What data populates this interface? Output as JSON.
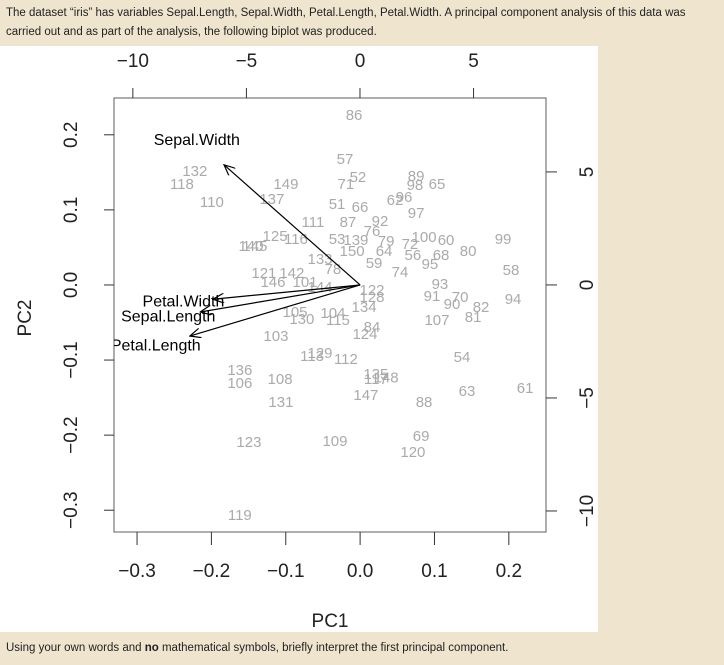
{
  "question": {
    "intro": "The dataset “iris” has variables Sepal.Length, Sepal.Width, Petal.Length, Petal.Width. A principal component analysis of this data was carried out and as part of the analysis, the following biplot was produced.",
    "prompt_start": "Using your own words and ",
    "prompt_emphasis": "no",
    "prompt_end": " mathematical symbols, briefly interpret the first principal component."
  },
  "chart_data": {
    "type": "biplot",
    "x_label": "PC1",
    "y_label": "PC2",
    "xlim": [
      -0.331,
      0.25
    ],
    "ylim": [
      -0.329,
      0.249
    ],
    "xticks": [
      {
        "value": -0.3,
        "label": "−0.3"
      },
      {
        "value": -0.2,
        "label": "−0.2"
      },
      {
        "value": -0.1,
        "label": "−0.1"
      },
      {
        "value": 0,
        "label": "0.0"
      },
      0.1,
      0.2
    ],
    "yticks": [
      {
        "value": -0.3,
        "label": "−0.3"
      },
      {
        "value": -0.2,
        "label": "−0.2"
      },
      {
        "value": -0.1,
        "label": "−0.1"
      },
      {
        "value": 0,
        "label": "0.0"
      },
      0.1,
      0.2
    ],
    "x2lim": [
      -10.83,
      8.19
    ],
    "y2lim": [
      -10.93,
      8.27
    ],
    "x2ticks": [
      {
        "value": -10,
        "label": "−10"
      },
      {
        "value": -5,
        "label": "−5"
      },
      0,
      5
    ],
    "y2ticks": [
      {
        "value": -10,
        "label": "−10"
      },
      {
        "value": -5,
        "label": "−5"
      },
      0,
      5
    ],
    "scores": {
      "color": "#aaaaaa",
      "labels": [
        "86",
        "57",
        "71",
        "52",
        "89",
        "98",
        "65",
        "132",
        "118",
        "149",
        "137",
        "110",
        "51",
        "66",
        "62",
        "96",
        "97",
        "111",
        "87",
        "92",
        "125",
        "116",
        "53",
        "139",
        "76",
        "79",
        "100",
        "60",
        "99",
        "140",
        "145",
        "150",
        "64",
        "56",
        "68",
        "80",
        "72",
        "59",
        "95",
        "74",
        "58",
        "133",
        "78",
        "121",
        "142",
        "146",
        "101",
        "144",
        "93",
        "91",
        "70",
        "90",
        "82",
        "94",
        "81",
        "107",
        "122",
        "128",
        "134",
        "105",
        "104",
        "130",
        "115",
        "124",
        "84",
        "103",
        "113",
        "129",
        "112",
        "54",
        "136",
        "106",
        "108",
        "135",
        "117",
        "148",
        "63",
        "61",
        "147",
        "88",
        "131",
        "123",
        "109",
        "69",
        "120",
        "119"
      ],
      "x": [
        -0.26,
        -0.66,
        -0.62,
        -0.09,
        2.47,
        2.42,
        3.39,
        -7.27,
        -7.84,
        -3.26,
        -3.88,
        -6.52,
        -1.01,
        0,
        1.54,
        1.94,
        2.47,
        -2.07,
        -0.53,
        0.88,
        -3.74,
        -2.82,
        -1.01,
        -0.18,
        0.53,
        1.15,
        2.82,
        3.79,
        6.3,
        -4.8,
        -4.63,
        -0.35,
        1.06,
        2.33,
        3.57,
        4.76,
        2.2,
        0.62,
        3.08,
        1.76,
        6.65,
        -1.76,
        -1.19,
        -4.23,
        -3.0,
        -3.83,
        -2.42,
        -1.76,
        3.52,
        3.17,
        4.41,
        4.05,
        5.33,
        6.74,
        4.98,
        3.39,
        0.53,
        0.53,
        0.18,
        -2.86,
        -1.19,
        -2.56,
        -0.97,
        0.22,
        0.53,
        -3.7,
        -2.11,
        -1.76,
        -0.62,
        4.49,
        -5.29,
        -5.29,
        -3.52,
        0.7,
        0.7,
        1.15,
        4.71,
        7.27,
        0.26,
        2.82,
        -3.48,
        -4.89,
        -1.1,
        2.69,
        2.33,
        -5.29
      ],
      "y": [
        7.48,
        5.53,
        4.42,
        4.73,
        4.78,
        4.38,
        4.42,
        5.0,
        4.42,
        4.42,
        3.76,
        3.63,
        3.54,
        3.41,
        3.72,
        3.85,
        3.14,
        2.74,
        2.74,
        2.79,
        2.12,
        1.99,
        1.99,
        1.95,
        2.35,
        1.9,
        2.08,
        1.95,
        1.99,
        1.68,
        1.68,
        1.46,
        1.46,
        1.28,
        1.28,
        1.46,
        1.77,
        0.93,
        0.88,
        0.53,
        0.62,
        1.11,
        0.66,
        0.49,
        0.49,
        0.09,
        0.09,
        -0.13,
        0,
        -0.53,
        -0.58,
        -0.88,
        -1.02,
        -0.66,
        -1.46,
        -1.59,
        -0.27,
        -0.58,
        -1.02,
        -1.24,
        -1.28,
        -1.55,
        -1.59,
        -2.21,
        -1.9,
        -2.3,
        -3.19,
        -3.05,
        -3.32,
        -3.23,
        -3.81,
        -4.38,
        -4.2,
        -3.98,
        -4.2,
        -4.15,
        -4.73,
        -4.6,
        -4.91,
        -5.22,
        -5.22,
        -6.99,
        -6.95,
        -6.73,
        -7.43,
        -10.22
      ]
    },
    "loadings": {
      "color": "#000000",
      "names": [
        "Sepal.Width",
        "Petal.Width",
        "Sepal.Length",
        "Petal.Length"
      ],
      "x": [
        -0.183,
        -0.198,
        -0.215,
        -0.229
      ],
      "y": [
        0.16,
        -0.019,
        -0.036,
        -0.068
      ]
    }
  }
}
